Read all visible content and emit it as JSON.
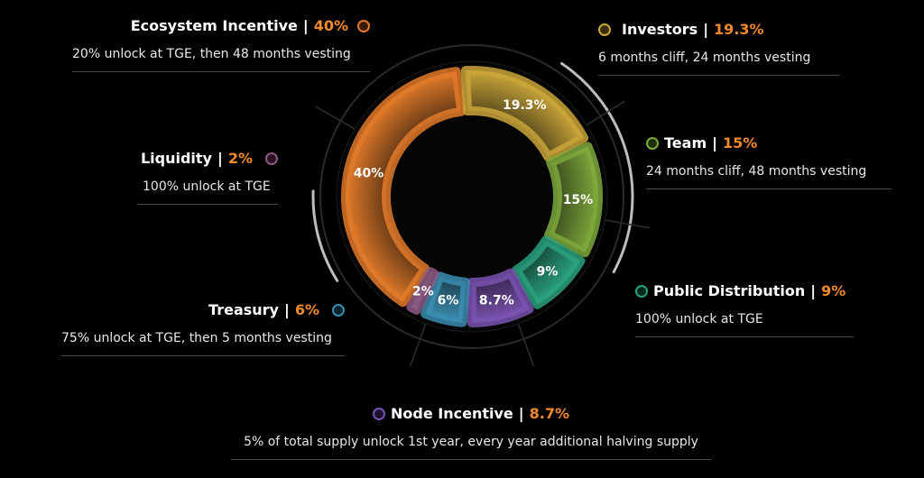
{
  "chart_data": {
    "type": "pie",
    "style": "donut",
    "categories": [
      "Ecosystem Incentive",
      "Investors",
      "Team",
      "Public Distribution",
      "Node Incentive",
      "Treasury",
      "Liquidity"
    ],
    "values": [
      40,
      19.3,
      15,
      9,
      8.7,
      6,
      2
    ],
    "value_labels": [
      "40%",
      "19.3%",
      "15%",
      "9%",
      "8.7%",
      "6%",
      "2%"
    ],
    "colors": [
      "#e07a2a",
      "#c9a53a",
      "#7ea83c",
      "#2aa17e",
      "#7a52b0",
      "#3b8db0",
      "#8c5a84"
    ]
  },
  "callouts": [
    {
      "key": "ecosystem",
      "name": "Ecosystem Incentive",
      "sep": "|",
      "pct": "40%",
      "desc": "20% unlock at TGE, then 48 months vesting",
      "color": "#e07a2a"
    },
    {
      "key": "investors",
      "name": "Investors",
      "sep": "|",
      "pct": "19.3%",
      "desc": "6 months cliff, 24 months vesting",
      "color": "#c9a53a"
    },
    {
      "key": "team",
      "name": "Team",
      "sep": "|",
      "pct": "15%",
      "desc": "24 months cliff, 48 months vesting",
      "color": "#7ea83c"
    },
    {
      "key": "public",
      "name": "Public Distribution",
      "sep": "|",
      "pct": "9%",
      "desc": "100% unlock at  TGE",
      "color": "#2aa17e"
    },
    {
      "key": "node",
      "name": "Node Incentive",
      "sep": "|",
      "pct": "8.7%",
      "desc": "5% of total supply unlock 1st year, every year additional halving supply",
      "color": "#7a52b0"
    },
    {
      "key": "treasury",
      "name": "Treasury",
      "sep": "|",
      "pct": "6%",
      "desc": "75% unlock at TGE, then 5 months vesting",
      "color": "#3b8db0"
    },
    {
      "key": "liquidity",
      "name": "Liquidity",
      "sep": "|",
      "pct": "2%",
      "desc": "100% unlock at TGE",
      "color": "#8c5a84"
    }
  ]
}
